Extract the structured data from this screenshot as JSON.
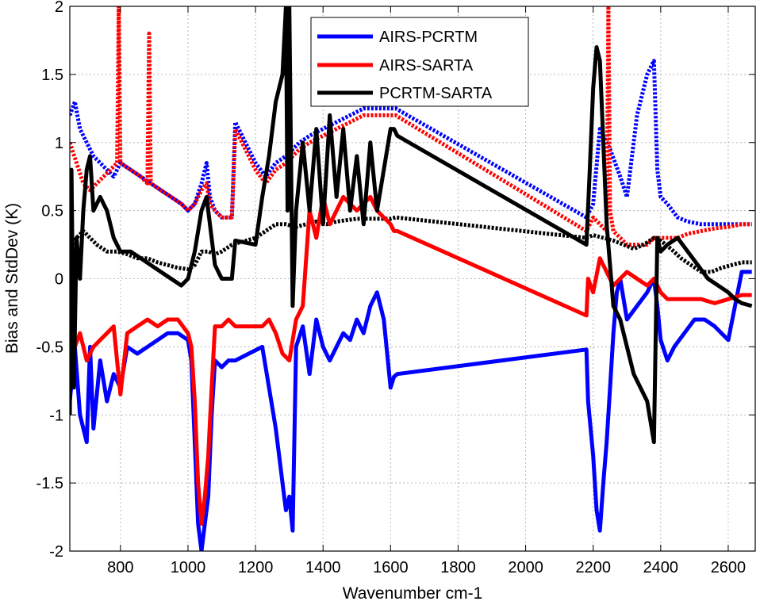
{
  "chart_data": {
    "type": "line",
    "title": "",
    "xlabel": "Wavenumber cm-1",
    "ylabel": "Bias and StdDev (K)",
    "xlim": [
      650,
      2680
    ],
    "ylim": [
      -2,
      2
    ],
    "xticks": [
      800,
      1000,
      1200,
      1400,
      1600,
      1800,
      2000,
      2200,
      2400,
      2600
    ],
    "yticks": [
      -2,
      -1.5,
      -1,
      -0.5,
      0,
      0.5,
      1,
      1.5,
      2
    ],
    "grid": true,
    "legend_position": "top-center",
    "series": [
      {
        "name": "AIRS-PCRTM",
        "color": "#0000ff",
        "stddev": {
          "x": [
            650,
            665,
            680,
            700,
            720,
            740,
            760,
            780,
            800,
            830,
            860,
            890,
            920,
            950,
            980,
            1000,
            1020,
            1040,
            1055,
            1065,
            1080,
            1100,
            1130,
            1140,
            1200,
            1230,
            1260,
            1290,
            1310,
            1330,
            1360,
            1400,
            1440,
            1480,
            1520,
            1560,
            1600,
            1615,
            2180,
            2200,
            2220,
            2250,
            2280,
            2300,
            2330,
            2360,
            2380,
            2390,
            2400,
            2420,
            2450,
            2480,
            2520,
            2560,
            2600,
            2640,
            2670
          ],
          "y": [
            1.2,
            1.3,
            1.1,
            1.0,
            0.9,
            0.85,
            0.8,
            0.75,
            0.85,
            0.8,
            0.75,
            0.7,
            0.65,
            0.6,
            0.55,
            0.5,
            0.55,
            0.7,
            0.85,
            0.6,
            0.5,
            0.45,
            0.45,
            1.15,
            0.85,
            0.75,
            0.85,
            0.9,
            0.95,
            1.0,
            1.05,
            1.1,
            1.15,
            1.2,
            1.25,
            1.25,
            1.25,
            1.25,
            0.45,
            0.55,
            1.1,
            0.95,
            0.75,
            0.6,
            1.2,
            1.5,
            1.6,
            0.8,
            0.6,
            0.55,
            0.45,
            0.42,
            0.4,
            0.4,
            0.4,
            0.4,
            0.4
          ]
        },
        "bias": {
          "x": [
            650,
            665,
            680,
            700,
            710,
            720,
            740,
            760,
            780,
            800,
            820,
            850,
            880,
            910,
            940,
            970,
            1000,
            1010,
            1020,
            1030,
            1040,
            1050,
            1060,
            1070,
            1080,
            1100,
            1120,
            1140,
            1220,
            1240,
            1260,
            1280,
            1290,
            1300,
            1310,
            1320,
            1340,
            1360,
            1380,
            1400,
            1420,
            1440,
            1460,
            1480,
            1500,
            1520,
            1540,
            1560,
            1580,
            1600,
            1610,
            1620,
            2180,
            2185,
            2200,
            2210,
            2220,
            2230,
            2240,
            2250,
            2260,
            2270,
            2280,
            2300,
            2330,
            2360,
            2380,
            2390,
            2400,
            2420,
            2440,
            2470,
            2500,
            2530,
            2560,
            2580,
            2600,
            2620,
            2640,
            2670
          ],
          "y": [
            -0.9,
            -0.5,
            -1.0,
            -1.2,
            -0.5,
            -1.1,
            -0.6,
            -0.9,
            -0.7,
            -0.8,
            -0.5,
            -0.55,
            -0.5,
            -0.45,
            -0.4,
            -0.4,
            -0.45,
            -0.6,
            -1.2,
            -1.8,
            -2.0,
            -1.8,
            -1.6,
            -1.0,
            -0.6,
            -0.65,
            -0.6,
            -0.6,
            -0.5,
            -0.8,
            -1.1,
            -1.5,
            -1.7,
            -1.6,
            -1.85,
            -0.5,
            -0.35,
            -0.7,
            -0.3,
            -0.5,
            -0.6,
            -0.5,
            -0.4,
            -0.45,
            -0.3,
            -0.4,
            -0.2,
            -0.1,
            -0.3,
            -0.8,
            -0.72,
            -0.7,
            -0.52,
            -0.9,
            -1.3,
            -1.7,
            -1.85,
            -1.5,
            -1.2,
            -0.8,
            -0.4,
            -0.1,
            0.0,
            -0.3,
            -0.2,
            -0.1,
            0.0,
            -0.2,
            -0.45,
            -0.6,
            -0.5,
            -0.4,
            -0.3,
            -0.3,
            -0.35,
            -0.4,
            -0.45,
            -0.2,
            0.05,
            0.05
          ]
        }
      },
      {
        "name": "AIRS-SARTA",
        "color": "#ff0000",
        "stddev": {
          "x": [
            650,
            670,
            690,
            710,
            730,
            750,
            770,
            790,
            795,
            800,
            830,
            860,
            880,
            885,
            890,
            920,
            950,
            980,
            1000,
            1020,
            1040,
            1055,
            1065,
            1080,
            1100,
            1130,
            1140,
            1200,
            1230,
            1260,
            1290,
            1310,
            1330,
            1360,
            1400,
            1440,
            1480,
            1520,
            1560,
            1600,
            1615,
            2180,
            2200,
            2220,
            2240,
            2245,
            2250,
            2260,
            2280,
            2300,
            2330,
            2360,
            2380,
            2390,
            2420,
            2450,
            2480,
            2520,
            2560,
            2600,
            2640,
            2670
          ],
          "y": [
            1.0,
            0.85,
            0.7,
            0.65,
            0.7,
            0.75,
            0.8,
            0.85,
            2.0,
            0.85,
            0.8,
            0.75,
            0.7,
            1.8,
            0.7,
            0.65,
            0.6,
            0.55,
            0.5,
            0.55,
            0.65,
            0.7,
            0.55,
            0.5,
            0.45,
            0.45,
            1.1,
            0.8,
            0.7,
            0.8,
            0.85,
            0.9,
            0.95,
            1.0,
            1.05,
            1.1,
            1.15,
            1.2,
            1.2,
            1.2,
            1.2,
            0.35,
            0.45,
            0.4,
            0.35,
            2.0,
            0.5,
            0.35,
            0.3,
            0.25,
            0.25,
            0.25,
            0.3,
            0.3,
            0.3,
            0.3,
            0.33,
            0.35,
            0.37,
            0.38,
            0.4,
            0.4
          ]
        },
        "bias": {
          "x": [
            650,
            665,
            680,
            700,
            720,
            740,
            760,
            780,
            800,
            820,
            850,
            880,
            910,
            940,
            970,
            1000,
            1010,
            1020,
            1030,
            1040,
            1050,
            1060,
            1070,
            1080,
            1100,
            1120,
            1140,
            1220,
            1240,
            1260,
            1280,
            1300,
            1320,
            1340,
            1360,
            1380,
            1400,
            1420,
            1440,
            1460,
            1480,
            1500,
            1520,
            1540,
            1560,
            1580,
            1600,
            1610,
            1620,
            2180,
            2185,
            2200,
            2220,
            2240,
            2260,
            2280,
            2300,
            2330,
            2360,
            2380,
            2390,
            2400,
            2420,
            2450,
            2480,
            2520,
            2560,
            2600,
            2640,
            2670
          ],
          "y": [
            -0.3,
            -0.5,
            -0.4,
            -0.6,
            -0.5,
            -0.45,
            -0.4,
            -0.35,
            -0.85,
            -0.4,
            -0.35,
            -0.3,
            -0.35,
            -0.3,
            -0.3,
            -0.4,
            -0.5,
            -0.9,
            -1.5,
            -1.8,
            -1.6,
            -1.3,
            -0.8,
            -0.35,
            -0.35,
            -0.3,
            -0.35,
            -0.35,
            -0.3,
            -0.4,
            -0.55,
            -0.6,
            -0.3,
            -0.2,
            0.5,
            0.3,
            0.6,
            0.4,
            0.5,
            0.6,
            0.55,
            0.5,
            0.55,
            0.6,
            0.5,
            0.45,
            0.4,
            0.35,
            0.35,
            -0.27,
            0.0,
            -0.1,
            0.15,
            0.05,
            -0.05,
            0.0,
            0.05,
            0.0,
            -0.05,
            0.0,
            -0.05,
            -0.1,
            -0.15,
            -0.15,
            -0.15,
            -0.15,
            -0.18,
            -0.15,
            -0.12,
            -0.12
          ]
        }
      },
      {
        "name": "PCRTM-SARTA",
        "color": "#000000",
        "stddev": {
          "x": [
            650,
            670,
            690,
            710,
            730,
            760,
            790,
            820,
            850,
            880,
            910,
            940,
            970,
            1000,
            1020,
            1040,
            1060,
            1080,
            1100,
            1130,
            1200,
            1230,
            1260,
            1290,
            1320,
            1350,
            1380,
            1410,
            1440,
            1470,
            1500,
            1530,
            1560,
            1600,
            1615,
            2180,
            2200,
            2230,
            2260,
            2290,
            2320,
            2350,
            2380,
            2400,
            2430,
            2460,
            2490,
            2520,
            2550,
            2580,
            2610,
            2640,
            2670
          ],
          "y": [
            0.2,
            0.3,
            0.35,
            0.3,
            0.25,
            0.2,
            0.2,
            0.18,
            0.15,
            0.15,
            0.12,
            0.1,
            0.08,
            0.07,
            0.1,
            0.2,
            0.2,
            0.18,
            0.2,
            0.25,
            0.3,
            0.35,
            0.4,
            0.4,
            0.38,
            0.4,
            0.42,
            0.4,
            0.42,
            0.43,
            0.44,
            0.44,
            0.44,
            0.44,
            0.45,
            0.3,
            0.32,
            0.3,
            0.28,
            0.25,
            0.22,
            0.25,
            0.3,
            0.28,
            0.22,
            0.15,
            0.1,
            0.05,
            0.05,
            0.08,
            0.1,
            0.12,
            0.12
          ]
        },
        "bias": {
          "x": [
            650,
            655,
            662,
            670,
            680,
            690,
            700,
            710,
            720,
            740,
            760,
            780,
            800,
            830,
            860,
            890,
            920,
            950,
            980,
            1000,
            1020,
            1040,
            1055,
            1065,
            1080,
            1100,
            1130,
            1140,
            1200,
            1220,
            1240,
            1260,
            1280,
            1290,
            1295,
            1300,
            1310,
            1320,
            1340,
            1360,
            1380,
            1400,
            1420,
            1440,
            1460,
            1480,
            1500,
            1520,
            1540,
            1560,
            1580,
            1600,
            1610,
            1620,
            2180,
            2190,
            2200,
            2210,
            2220,
            2230,
            2240,
            2260,
            2280,
            2300,
            2320,
            2340,
            2360,
            2380,
            2390,
            2400,
            2420,
            2450,
            2480,
            2510,
            2540,
            2570,
            2600,
            2620,
            2640,
            2670
          ],
          "y": [
            -1.0,
            0.8,
            -0.8,
            0.3,
            0.0,
            0.5,
            0.8,
            0.9,
            0.5,
            0.6,
            0.5,
            0.3,
            0.2,
            0.2,
            0.15,
            0.1,
            0.05,
            0.0,
            -0.05,
            0.0,
            0.2,
            0.5,
            0.6,
            0.4,
            0.1,
            0.0,
            0.0,
            0.28,
            0.25,
            0.6,
            0.9,
            1.3,
            1.5,
            2.0,
            0.5,
            2.0,
            -0.2,
            0.5,
            1.0,
            0.5,
            1.1,
            0.4,
            1.2,
            0.6,
            1.1,
            0.5,
            0.9,
            0.4,
            1.0,
            0.5,
            0.8,
            1.1,
            1.1,
            1.05,
            0.25,
            0.8,
            1.4,
            1.7,
            1.6,
            1.0,
            0.4,
            -0.2,
            -0.3,
            -0.5,
            -0.7,
            -0.8,
            -0.9,
            -1.2,
            0.3,
            0.2,
            0.25,
            0.3,
            0.2,
            0.1,
            0.0,
            -0.05,
            -0.1,
            -0.15,
            -0.18,
            -0.2
          ]
        }
      }
    ]
  }
}
